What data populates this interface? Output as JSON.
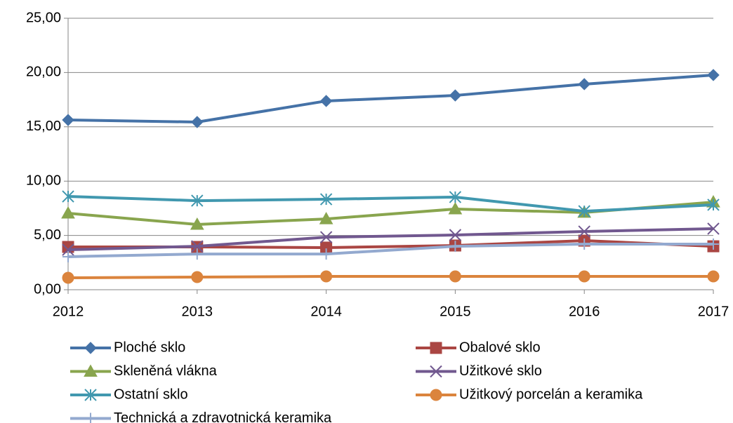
{
  "chart_data": {
    "type": "line",
    "categories": [
      "2012",
      "2013",
      "2014",
      "2015",
      "2016",
      "2017"
    ],
    "ylim": [
      0,
      25
    ],
    "yticks": [
      {
        "value": 0,
        "label": "0,00"
      },
      {
        "value": 5,
        "label": "5,00"
      },
      {
        "value": 10,
        "label": "10,00"
      },
      {
        "value": 15,
        "label": "15,00"
      },
      {
        "value": 20,
        "label": "20,00"
      },
      {
        "value": 25,
        "label": "25,00"
      }
    ],
    "grid": true,
    "legend": "bottom",
    "series": [
      {
        "name": "Ploché sklo",
        "color": "#4572a7",
        "marker": "diamond",
        "values": [
          15.63,
          15.44,
          17.38,
          17.89,
          18.93,
          19.77
        ]
      },
      {
        "name": "Obalové sklo",
        "color": "#aa4643",
        "marker": "square",
        "values": [
          3.94,
          3.94,
          3.88,
          4.07,
          4.52,
          4.0
        ]
      },
      {
        "name": "Skleněná vlákna",
        "color": "#89a54e",
        "marker": "triangle",
        "values": [
          7.04,
          6.01,
          6.52,
          7.43,
          7.11,
          8.07
        ]
      },
      {
        "name": "Užitkové sklo",
        "color": "#71588f",
        "marker": "x",
        "values": [
          3.68,
          4.0,
          4.84,
          5.04,
          5.36,
          5.62
        ]
      },
      {
        "name": "Ostatní sklo",
        "color": "#4198af",
        "marker": "star",
        "values": [
          8.59,
          8.2,
          8.33,
          8.53,
          7.23,
          7.82
        ]
      },
      {
        "name": "Užitkový porcelán a keramika",
        "color": "#db843d",
        "marker": "circle",
        "values": [
          1.1,
          1.16,
          1.23,
          1.23,
          1.23,
          1.23
        ]
      },
      {
        "name": "Technická a zdravotnická keramika",
        "color": "#93a9cf",
        "marker": "plus",
        "values": [
          3.04,
          3.29,
          3.29,
          4.0,
          4.2,
          4.2
        ]
      }
    ]
  }
}
